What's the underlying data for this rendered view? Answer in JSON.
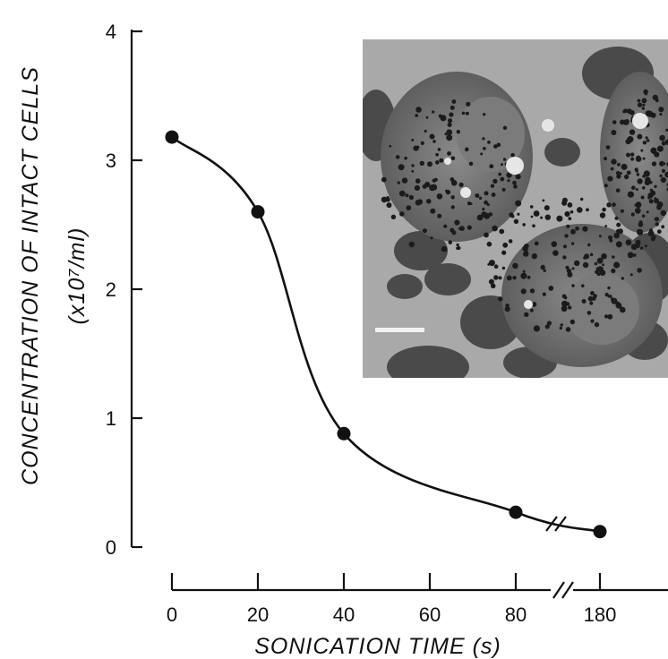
{
  "chart_data": {
    "type": "line",
    "xlabel": "SONICATION TIME (s)",
    "ylabel_line1": "CONCENTRATION OF INTACT CELLS",
    "ylabel_line2": "(x10⁷/ml)",
    "x_ticks": [
      "0",
      "20",
      "40",
      "60",
      "80",
      "180"
    ],
    "y_ticks": [
      "0",
      "1",
      "2",
      "3",
      "4"
    ],
    "ylim": [
      0,
      4
    ],
    "x_axis_break": "between 80 and 180",
    "series": [
      {
        "x": [
          0,
          20,
          40,
          80,
          180
        ],
        "y": [
          3.18,
          2.6,
          0.88,
          0.27,
          0.12
        ]
      }
    ],
    "inset": "phase-contrast micrograph of cells with scale bar",
    "grid": false
  }
}
